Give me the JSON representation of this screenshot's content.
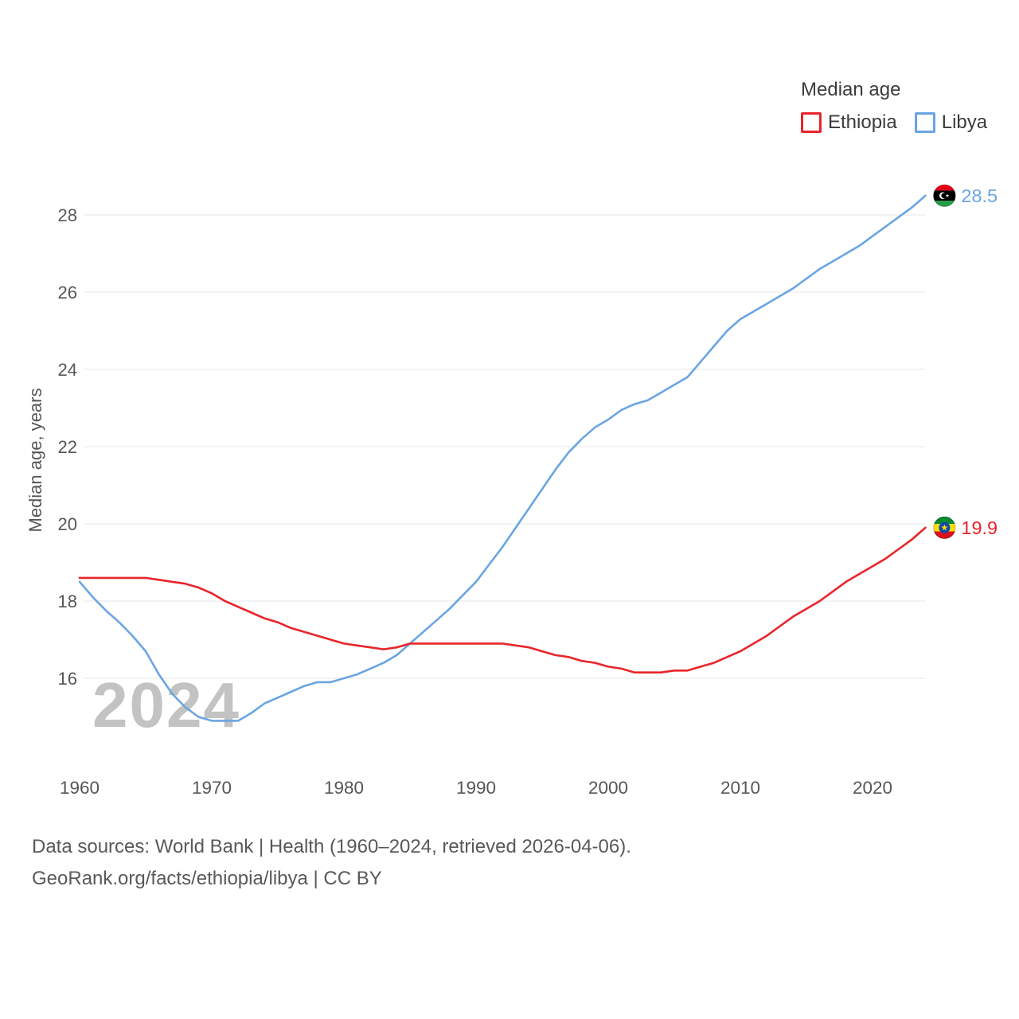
{
  "legend": {
    "title": "Median age",
    "items": [
      {
        "label": "Ethiopia",
        "color": "#e8252a"
      },
      {
        "label": "Libya",
        "color": "#6aa5e2"
      }
    ]
  },
  "watermark": "2024",
  "footer": {
    "line1": "Data sources: World Bank | Health (1960–2024, retrieved 2026-04-06).",
    "line2": "GeoRank.org/facts/ethiopia/libya | CC BY"
  },
  "chart_data": {
    "type": "line",
    "title": "Median age",
    "ylabel": "Median age, years",
    "xlabel": "",
    "grid": true,
    "legend_position": "top-right",
    "xlim": [
      1960,
      2024
    ],
    "ylim": [
      14.2,
      29.3
    ],
    "yticks": [
      16,
      18,
      20,
      22,
      24,
      26,
      28
    ],
    "xticks": [
      1960,
      1970,
      1980,
      1990,
      2000,
      2010,
      2020
    ],
    "x": [
      1960,
      1961,
      1962,
      1963,
      1964,
      1965,
      1966,
      1967,
      1968,
      1969,
      1970,
      1971,
      1972,
      1973,
      1974,
      1975,
      1976,
      1977,
      1978,
      1979,
      1980,
      1981,
      1982,
      1983,
      1984,
      1985,
      1986,
      1987,
      1988,
      1989,
      1990,
      1991,
      1992,
      1993,
      1994,
      1995,
      1996,
      1997,
      1998,
      1999,
      2000,
      2001,
      2002,
      2003,
      2004,
      2005,
      2006,
      2007,
      2008,
      2009,
      2010,
      2011,
      2012,
      2013,
      2014,
      2015,
      2016,
      2017,
      2018,
      2019,
      2020,
      2021,
      2022,
      2023,
      2024
    ],
    "series": [
      {
        "name": "Ethiopia",
        "color": "#e8252a",
        "end_label": "19.9",
        "flag": "ethiopia",
        "values": [
          18.6,
          18.6,
          18.6,
          18.6,
          18.6,
          18.6,
          18.55,
          18.5,
          18.45,
          18.35,
          18.2,
          18.0,
          17.85,
          17.7,
          17.55,
          17.45,
          17.3,
          17.2,
          17.1,
          17.0,
          16.9,
          16.85,
          16.8,
          16.75,
          16.8,
          16.9,
          16.9,
          16.9,
          16.9,
          16.9,
          16.9,
          16.9,
          16.9,
          16.85,
          16.8,
          16.7,
          16.6,
          16.55,
          16.45,
          16.4,
          16.3,
          16.25,
          16.15,
          16.15,
          16.15,
          16.2,
          16.2,
          16.3,
          16.4,
          16.55,
          16.7,
          16.9,
          17.1,
          17.35,
          17.6,
          17.8,
          18.0,
          18.25,
          18.5,
          18.7,
          18.9,
          19.1,
          19.35,
          19.6,
          19.9
        ]
      },
      {
        "name": "Libya",
        "color": "#6aa5e2",
        "end_label": "28.5",
        "flag": "libya",
        "values": [
          18.5,
          18.1,
          17.75,
          17.45,
          17.1,
          16.7,
          16.1,
          15.6,
          15.25,
          15.0,
          14.9,
          14.9,
          14.9,
          15.1,
          15.35,
          15.5,
          15.65,
          15.8,
          15.9,
          15.9,
          16.0,
          16.1,
          16.25,
          16.4,
          16.6,
          16.9,
          17.2,
          17.5,
          17.8,
          18.15,
          18.5,
          18.95,
          19.4,
          19.9,
          20.4,
          20.9,
          21.4,
          21.85,
          22.2,
          22.5,
          22.7,
          22.95,
          23.1,
          23.2,
          23.4,
          23.6,
          23.8,
          24.2,
          24.6,
          25.0,
          25.3,
          25.5,
          25.7,
          25.9,
          26.1,
          26.35,
          26.6,
          26.8,
          27.0,
          27.2,
          27.45,
          27.7,
          27.95,
          28.2,
          28.5
        ]
      }
    ]
  }
}
